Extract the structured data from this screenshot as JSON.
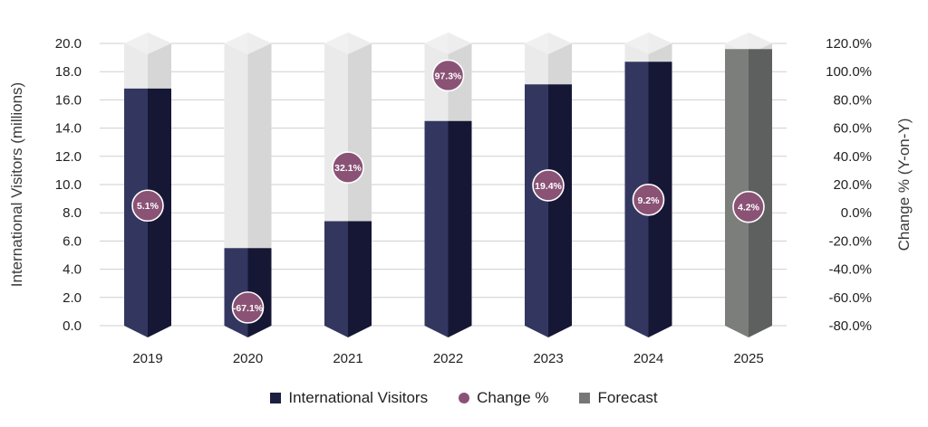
{
  "chart_data": {
    "type": "bar",
    "categories": [
      "2019",
      "2020",
      "2021",
      "2022",
      "2023",
      "2024",
      "2025"
    ],
    "series": [
      {
        "name": "International Visitors",
        "values": [
          16.8,
          5.5,
          7.4,
          14.5,
          17.1,
          18.7,
          19.6
        ]
      },
      {
        "name": "Change %",
        "values": [
          5.1,
          -67.1,
          32.1,
          97.3,
          19.4,
          9.2,
          4.2
        ]
      }
    ],
    "change_labels": [
      "5.1%",
      "-67.1%",
      "32.1%",
      "97.3%",
      "19.4%",
      "9.2%",
      "4.2%"
    ],
    "forecast": [
      false,
      false,
      false,
      false,
      false,
      false,
      true
    ],
    "ylabel": "International Visitors (millions)",
    "y2label": "Change % (Y-on-Y)",
    "ylim": [
      0,
      20
    ],
    "y2lim": [
      -80,
      120
    ],
    "yticks": [
      "0.0",
      "2.0",
      "4.0",
      "6.0",
      "8.0",
      "10.0",
      "12.0",
      "14.0",
      "16.0",
      "18.0",
      "20.0"
    ],
    "y2ticks": [
      "-80.0%",
      "-60.0%",
      "-40.0%",
      "-20.0%",
      "0.0%",
      "20.0%",
      "40.0%",
      "60.0%",
      "80.0%",
      "100.0%",
      "120.0%"
    ],
    "grid": true,
    "legend_position": "bottom",
    "legend": [
      {
        "label": "International Visitors",
        "marker": "square",
        "color": "#1c1f3f"
      },
      {
        "label": "Change %",
        "marker": "circle",
        "color": "#8a5275"
      },
      {
        "label": "Forecast",
        "marker": "square",
        "color": "#777777"
      }
    ],
    "colors": {
      "actual_left": "#333760",
      "actual_right": "#161735",
      "forecast_left": "#7b7e7b",
      "forecast_right": "#5d605e",
      "ghost_left": "#eaeaea",
      "ghost_right": "#d6d6d6",
      "bubble": "#8a5275",
      "grid": "#cfcfcf"
    }
  }
}
